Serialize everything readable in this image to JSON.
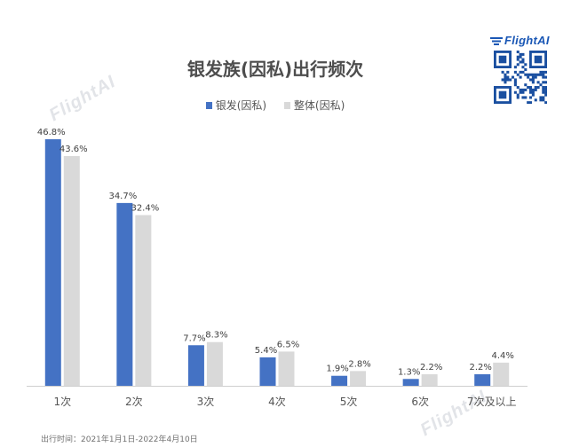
{
  "brand": {
    "name": "FlightAI",
    "watermark": "FlightAI"
  },
  "footnote": "出行时间：2021年1月1日-2022年4月10日",
  "chart_data": {
    "type": "bar",
    "title": "银发族(因私)出行频次",
    "categories": [
      "1次",
      "2次",
      "3次",
      "4次",
      "5次",
      "6次",
      "7次及以上"
    ],
    "series": [
      {
        "name": "银发(因私)",
        "values": [
          46.8,
          34.7,
          7.7,
          5.4,
          1.9,
          1.3,
          2.2
        ],
        "labels": [
          "46.8%",
          "34.7%",
          "7.7%",
          "5.4%",
          "1.9%",
          "1.3%",
          "2.2%"
        ]
      },
      {
        "name": "整体(因私)",
        "values": [
          43.6,
          32.4,
          8.3,
          6.5,
          2.8,
          2.2,
          4.4
        ],
        "labels": [
          "43.6%",
          "32.4%",
          "8.3%",
          "6.5%",
          "2.8%",
          "2.2%",
          "4.4%"
        ]
      }
    ],
    "colors": [
      "#4472c4",
      "#d9d9d9"
    ],
    "legend_position": "top",
    "grid": false,
    "ylim": [
      0,
      50
    ]
  }
}
